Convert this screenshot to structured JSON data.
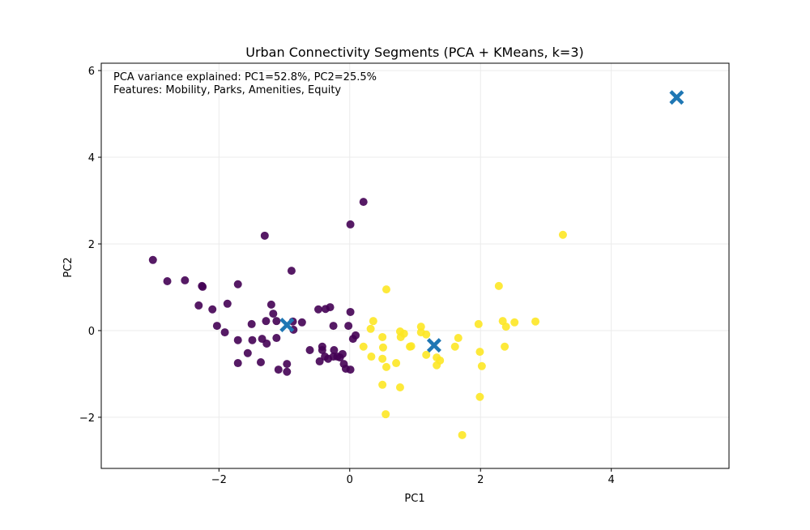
{
  "chart_data": {
    "type": "scatter",
    "title": "Urban Connectivity Segments (PCA + KMeans, k=3)",
    "xlabel": "PC1",
    "ylabel": "PC2",
    "xlim": [
      -3.8,
      5.8
    ],
    "ylim": [
      -3.18,
      6.17
    ],
    "xticks": [
      -2,
      0,
      2,
      4
    ],
    "yticks": [
      -2,
      0,
      2,
      4,
      6
    ],
    "xtick_labels": [
      "−2",
      "0",
      "2",
      "4"
    ],
    "ytick_labels": [
      "−2",
      "0",
      "2",
      "4",
      "6"
    ],
    "grid": true,
    "annotations": [
      "PCA variance explained: PC1=52.8%, PC2=25.5%",
      "Features: Mobility, Parks, Amenities, Equity"
    ],
    "colors": {
      "cluster_a": "#440154",
      "cluster_b": "#fde725",
      "centroid": "#1f77b4"
    },
    "series": [
      {
        "color": "#440154",
        "points": [
          [
            -3.01,
            1.63
          ],
          [
            -2.79,
            1.14
          ],
          [
            -2.52,
            1.16
          ],
          [
            -2.26,
            1.03
          ],
          [
            -2.25,
            1.01
          ],
          [
            -1.71,
            1.07
          ],
          [
            -1.3,
            2.19
          ],
          [
            -0.89,
            1.38
          ],
          [
            0.21,
            2.97
          ],
          [
            0.01,
            2.45
          ],
          [
            -2.31,
            0.58
          ],
          [
            -2.1,
            0.49
          ],
          [
            -1.87,
            0.62
          ],
          [
            -2.03,
            0.11
          ],
          [
            -1.91,
            -0.04
          ],
          [
            -1.71,
            -0.22
          ],
          [
            -1.71,
            -0.75
          ],
          [
            -1.56,
            -0.52
          ],
          [
            -1.5,
            0.15
          ],
          [
            -1.49,
            -0.22
          ],
          [
            -1.36,
            -0.73
          ],
          [
            -1.34,
            -0.19
          ],
          [
            -1.28,
            0.22
          ],
          [
            -1.27,
            -0.3
          ],
          [
            -1.2,
            0.6
          ],
          [
            -1.17,
            0.39
          ],
          [
            -1.12,
            0.22
          ],
          [
            -1.12,
            -0.17
          ],
          [
            -1.09,
            -0.9
          ],
          [
            -0.96,
            -0.77
          ],
          [
            -0.96,
            -0.95
          ],
          [
            -0.87,
            0.21
          ],
          [
            -0.73,
            0.19
          ],
          [
            -0.86,
            0.02
          ],
          [
            -0.48,
            0.49
          ],
          [
            -0.37,
            0.5
          ],
          [
            -0.3,
            0.54
          ],
          [
            -0.25,
            0.11
          ],
          [
            -0.61,
            -0.45
          ],
          [
            -0.46,
            -0.71
          ],
          [
            -0.42,
            -0.45
          ],
          [
            -0.42,
            -0.37
          ],
          [
            -0.38,
            -0.6
          ],
          [
            -0.33,
            -0.65
          ],
          [
            -0.25,
            -0.6
          ],
          [
            -0.24,
            -0.45
          ],
          [
            -0.19,
            -0.6
          ],
          [
            -0.15,
            -0.62
          ],
          [
            -0.11,
            -0.54
          ],
          [
            -0.09,
            -0.77
          ],
          [
            -0.06,
            -0.88
          ],
          [
            0.01,
            -0.9
          ],
          [
            -0.02,
            0.11
          ],
          [
            0.01,
            0.43
          ],
          [
            0.05,
            -0.19
          ],
          [
            0.09,
            -0.11
          ]
        ]
      },
      {
        "color": "#fde725",
        "points": [
          [
            0.56,
            0.95
          ],
          [
            0.36,
            0.22
          ],
          [
            0.32,
            0.04
          ],
          [
            0.21,
            -0.37
          ],
          [
            0.33,
            -0.6
          ],
          [
            0.5,
            -0.15
          ],
          [
            0.51,
            -0.39
          ],
          [
            0.5,
            -0.65
          ],
          [
            0.56,
            -0.84
          ],
          [
            0.71,
            -0.75
          ],
          [
            0.5,
            -1.25
          ],
          [
            0.77,
            -1.31
          ],
          [
            0.55,
            -1.93
          ],
          [
            0.77,
            -0.02
          ],
          [
            0.78,
            -0.15
          ],
          [
            0.83,
            -0.07
          ],
          [
            0.92,
            -0.37
          ],
          [
            0.94,
            -0.36
          ],
          [
            1.09,
            0.09
          ],
          [
            1.09,
            -0.04
          ],
          [
            1.17,
            -0.09
          ],
          [
            1.17,
            -0.56
          ],
          [
            1.33,
            -0.62
          ],
          [
            1.38,
            -0.69
          ],
          [
            1.33,
            -0.8
          ],
          [
            1.61,
            -0.37
          ],
          [
            1.66,
            -0.17
          ],
          [
            1.97,
            0.15
          ],
          [
            1.99,
            -0.49
          ],
          [
            2.02,
            -0.82
          ],
          [
            1.99,
            -1.53
          ],
          [
            1.72,
            -2.41
          ],
          [
            2.28,
            1.03
          ],
          [
            2.34,
            0.22
          ],
          [
            2.39,
            0.09
          ],
          [
            2.37,
            -0.37
          ],
          [
            2.52,
            0.19
          ],
          [
            2.84,
            0.21
          ],
          [
            3.26,
            2.21
          ]
        ]
      }
    ],
    "centroids": [
      [
        -0.96,
        0.13
      ],
      [
        1.29,
        -0.34
      ],
      [
        5.0,
        5.38
      ]
    ]
  }
}
